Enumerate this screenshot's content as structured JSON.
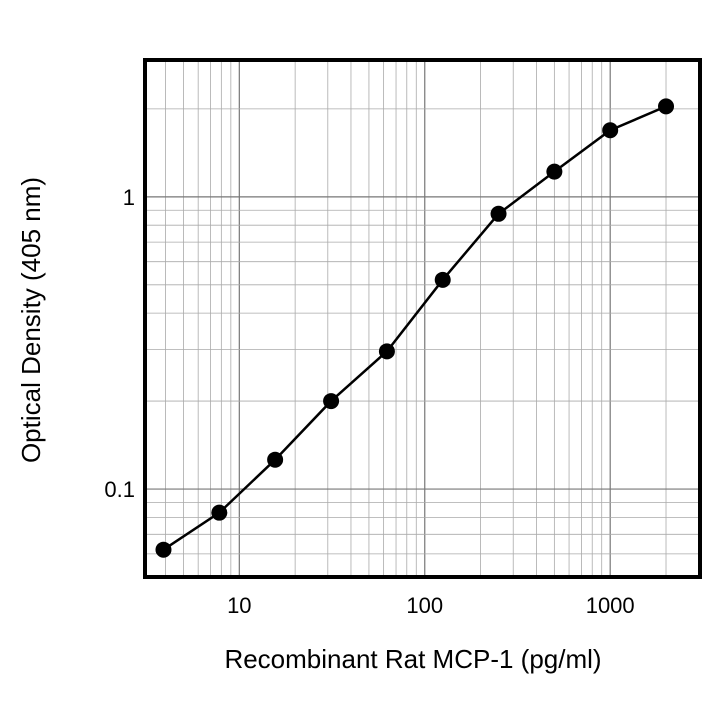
{
  "chart_data": {
    "type": "line",
    "title": "",
    "xlabel": "Recombinant Rat MCP-1 (pg/ml)",
    "ylabel": "Optical Density (405 nm)",
    "x_scale": "log",
    "y_scale": "log",
    "xlim": [
      3.1,
      3050
    ],
    "ylim": [
      0.05,
      2.94
    ],
    "grid": true,
    "legend": "none",
    "x_ticks": [
      10,
      100,
      1000
    ],
    "x_tick_labels": [
      "10",
      "100",
      "1000"
    ],
    "y_ticks": [
      0.1,
      1
    ],
    "y_tick_labels": [
      "0.1",
      "1"
    ],
    "series": [
      {
        "x": [
          3.9,
          7.8,
          15.6,
          31.25,
          62.5,
          125,
          250,
          500,
          1000,
          2000
        ],
        "y": [
          0.062,
          0.083,
          0.126,
          0.2,
          0.296,
          0.52,
          0.875,
          1.22,
          1.69,
          2.04
        ],
        "color": "#000000",
        "marker": "circle"
      }
    ]
  }
}
